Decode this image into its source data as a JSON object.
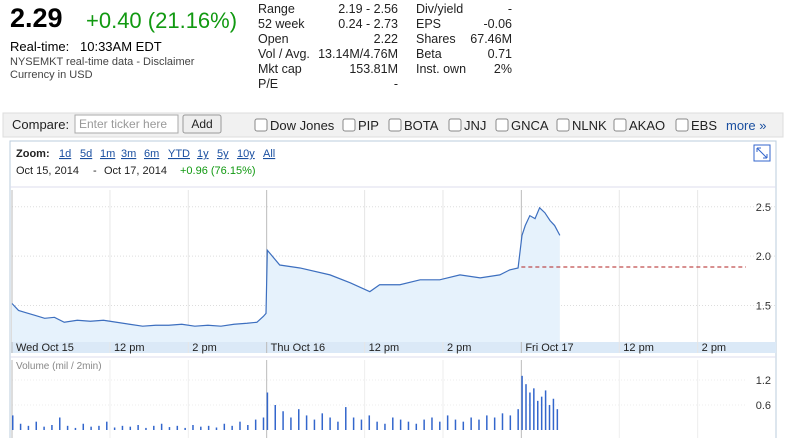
{
  "quote": {
    "price": "2.29",
    "change": "+0.40 (21.16%)",
    "realtime_label": "Real-time:",
    "time": "10:33AM EDT",
    "source": "NYSEMKT real-time data - Disclaimer",
    "currency": "Currency in USD"
  },
  "stats": {
    "left": [
      [
        "Range",
        "2.19 - 2.56"
      ],
      [
        "52 week",
        "0.24 - 2.73"
      ],
      [
        "Open",
        "2.22"
      ],
      [
        "Vol / Avg.",
        "13.14M/4.76M"
      ],
      [
        "Mkt cap",
        "153.81M"
      ],
      [
        "P/E",
        "-"
      ]
    ],
    "right": [
      [
        "Div/yield",
        "-"
      ],
      [
        "EPS",
        "-0.06"
      ],
      [
        "Shares",
        "67.46M"
      ],
      [
        "Beta",
        "0.71"
      ],
      [
        "Inst. own",
        "2%"
      ]
    ]
  },
  "compare": {
    "label": "Compare:",
    "placeholder": "Enter ticker here",
    "button": "Add",
    "tickers": [
      "Dow Jones",
      "PIP",
      "BOTA",
      "JNJ",
      "GNCA",
      "NLNK",
      "AKAO",
      "EBS"
    ],
    "more": "more »"
  },
  "zoom": {
    "label": "Zoom:",
    "options": [
      "1d",
      "5d",
      "1m",
      "3m",
      "6m",
      "YTD",
      "1y",
      "5y",
      "10y",
      "All"
    ]
  },
  "range": {
    "start": "Oct 15, 2014",
    "separator": "-",
    "end": "Oct 17, 2014",
    "change": "+0.96 (76.15%)"
  },
  "chart_data": [
    {
      "type": "line",
      "color": "#3d6fbf",
      "fill": "#e6f2fc",
      "grid": true,
      "x": [
        0,
        10,
        20,
        35,
        50,
        65,
        80,
        100,
        120,
        140,
        160,
        180,
        200,
        220,
        240,
        260,
        280,
        300,
        320,
        340,
        360,
        375,
        385,
        389,
        391,
        410,
        441,
        487,
        518,
        548,
        563,
        594,
        625,
        655,
        686,
        717,
        747,
        762,
        775,
        781,
        786,
        793,
        801,
        808,
        816,
        824,
        831,
        839
      ],
      "values": [
        1.52,
        1.45,
        1.43,
        1.4,
        1.37,
        1.38,
        1.33,
        1.35,
        1.34,
        1.35,
        1.33,
        1.31,
        1.29,
        1.3,
        1.3,
        1.31,
        1.29,
        1.3,
        1.29,
        1.31,
        1.32,
        1.33,
        1.39,
        1.42,
        2.06,
        1.91,
        1.88,
        1.81,
        1.73,
        1.64,
        1.71,
        1.71,
        1.76,
        1.76,
        1.81,
        1.78,
        1.81,
        1.86,
        1.88,
        2.21,
        2.31,
        2.41,
        2.38,
        2.49,
        2.44,
        2.36,
        2.31,
        2.21
      ],
      "previous_close": 1.89,
      "previous_close_color": "#b22222",
      "xlim": [
        0,
        1170
      ],
      "xticks": [
        {
          "value": 0,
          "label": "Wed Oct 15"
        },
        {
          "value": 150,
          "label": "12 pm"
        },
        {
          "value": 270,
          "label": "2 pm"
        },
        {
          "value": 390,
          "label": "Thu Oct 16"
        },
        {
          "value": 540,
          "label": "12 pm"
        },
        {
          "value": 660,
          "label": "2 pm"
        },
        {
          "value": 780,
          "label": "Fri Oct 17"
        },
        {
          "value": 930,
          "label": "12 pm"
        },
        {
          "value": 1050,
          "label": "2 pm"
        }
      ],
      "ylim": [
        1.13,
        2.67
      ],
      "yticks": [
        1.5,
        {
          "value": 2,
          "label": "2.0"
        },
        2.5
      ]
    },
    {
      "type": "bar",
      "title": "Volume (mil / 2min)",
      "color": "#3366cc",
      "x": [
        0,
        12,
        24,
        36,
        48,
        60,
        72,
        84,
        96,
        108,
        120,
        132,
        144,
        156,
        168,
        180,
        192,
        204,
        216,
        228,
        240,
        252,
        264,
        276,
        288,
        300,
        312,
        324,
        336,
        348,
        360,
        372,
        384,
        390,
        402,
        414,
        426,
        438,
        450,
        462,
        474,
        486,
        498,
        510,
        522,
        534,
        546,
        558,
        570,
        582,
        594,
        606,
        618,
        630,
        642,
        654,
        666,
        678,
        690,
        702,
        714,
        726,
        738,
        750,
        762,
        774,
        780,
        786,
        792,
        798,
        804,
        810,
        816,
        822,
        828,
        834
      ],
      "values": [
        0.35,
        0.15,
        0.1,
        0.2,
        0.08,
        0.12,
        0.3,
        0.1,
        0.05,
        0.15,
        0.08,
        0.1,
        0.2,
        0.06,
        0.1,
        0.08,
        0.12,
        0.05,
        0.1,
        0.15,
        0.07,
        0.1,
        0.05,
        0.12,
        0.08,
        0.1,
        0.06,
        0.15,
        0.1,
        0.2,
        0.12,
        0.25,
        0.3,
        0.9,
        0.6,
        0.45,
        0.3,
        0.5,
        0.35,
        0.25,
        0.4,
        0.3,
        0.2,
        0.55,
        0.3,
        0.25,
        0.35,
        0.2,
        0.15,
        0.3,
        0.25,
        0.2,
        0.15,
        0.25,
        0.3,
        0.2,
        0.35,
        0.25,
        0.2,
        0.3,
        0.25,
        0.35,
        0.3,
        0.4,
        0.35,
        0.5,
        1.3,
        1.1,
        0.9,
        1.0,
        0.7,
        0.8,
        0.95,
        0.6,
        0.75,
        0.5
      ],
      "xlim": [
        0,
        1170
      ],
      "ylim": [
        0,
        1.44
      ],
      "yticks": [
        0.6,
        1.2
      ]
    }
  ]
}
